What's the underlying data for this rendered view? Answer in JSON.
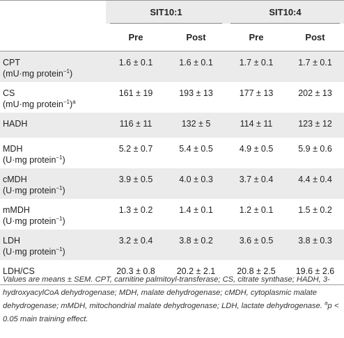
{
  "groups": [
    "SIT10:1",
    "SIT10:4"
  ],
  "subheaders": [
    "Pre",
    "Post",
    "Pre",
    "Post"
  ],
  "rows": [
    {
      "name": "CPT",
      "unit": "(mU·mg protein",
      "unit_sup": "−1",
      "unit_tail": ")",
      "vals": [
        "1.6 ± 0.1",
        "1.6 ± 0.1",
        "1.7 ± 0.1",
        "1.7 ± 0.1"
      ]
    },
    {
      "name": "CS",
      "unit": "(mU·mg protein",
      "unit_sup": "−1",
      "unit_tail": ")",
      "unit_sup2": "a",
      "vals": [
        "161 ± 19",
        "193 ± 13",
        "177 ± 13",
        "202 ± 13"
      ]
    },
    {
      "name": "HADH",
      "unit": "",
      "unit_sup": "",
      "unit_tail": "",
      "vals": [
        "116 ± 11",
        "132 ± 5",
        "114 ± 11",
        "123 ± 12"
      ]
    },
    {
      "name": "MDH",
      "unit": "(U·mg protein",
      "unit_sup": "−1",
      "unit_tail": ")",
      "vals": [
        "5.2 ± 0.7",
        "5.4 ± 0.5",
        "4.9 ± 0.5",
        "5.9 ± 0.6"
      ]
    },
    {
      "name": "cMDH",
      "unit": "(U·mg protein",
      "unit_sup": "−1",
      "unit_tail": ")",
      "vals": [
        "3.9 ± 0.5",
        "4.0 ± 0.3",
        "3.7 ± 0.4",
        "4.4 ± 0.4"
      ]
    },
    {
      "name": "mMDH",
      "unit": "(U·mg protein",
      "unit_sup": "−1",
      "unit_tail": ")",
      "vals": [
        "1.3 ± 0.2",
        "1.4 ± 0.1",
        "1.2 ± 0.1",
        "1.5 ± 0.2"
      ]
    },
    {
      "name": "LDH",
      "unit": "(U·mg protein",
      "unit_sup": "−1",
      "unit_tail": ")",
      "vals": [
        "3.2 ± 0.4",
        "3.8 ± 0.2",
        "3.6 ± 0.5",
        "3.8 ± 0.3"
      ]
    },
    {
      "name": "LDH/CS",
      "unit": "",
      "unit_sup": "",
      "unit_tail": "",
      "vals": [
        "20.3 ± 0.8",
        "20.2 ± 2.1",
        "20.8 ± 2.5",
        "19.6 ± 2.6"
      ]
    }
  ],
  "footnote": {
    "text": "Values are means ± SEM. CPT, carnitine palmitoyl-transferase; CS, citrate synthase; HADH, 3-hydroxyacylCoA dehydrogenase; MDH, malate dehydrogenase; cMDH, cytoplasmic malate dehydrogenase; mMDH, mitochondrial malate dehydrogenase; LDH, lactate dehydrogenase. ",
    "sup": "a",
    "tail": "p < 0.05 main training effect."
  },
  "colors": {
    "band": "#ebebeb",
    "rule": "#999999"
  }
}
